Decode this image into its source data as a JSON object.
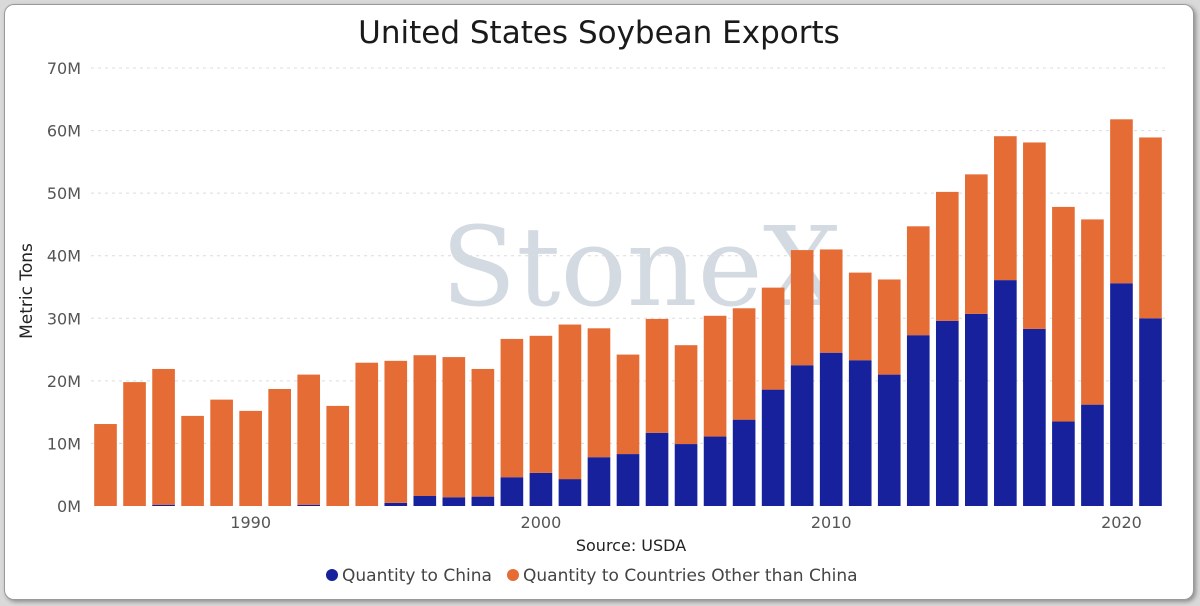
{
  "chart_data": {
    "type": "bar",
    "stacked": true,
    "title": "United States Soybean Exports",
    "ylabel": "Metric Tons",
    "xlabel": "Source: USDA",
    "ylim": [
      0,
      70000000
    ],
    "y_ticks": [
      {
        "value": 0,
        "label": "0M"
      },
      {
        "value": 10000000,
        "label": "10M"
      },
      {
        "value": 20000000,
        "label": "20M"
      },
      {
        "value": 30000000,
        "label": "30M"
      },
      {
        "value": 40000000,
        "label": "40M"
      },
      {
        "value": 50000000,
        "label": "50M"
      },
      {
        "value": 60000000,
        "label": "60M"
      },
      {
        "value": 70000000,
        "label": "70M"
      }
    ],
    "x_ticks": [
      {
        "value": 1990,
        "label": "1990"
      },
      {
        "value": 2000,
        "label": "2000"
      },
      {
        "value": 2010,
        "label": "2010"
      },
      {
        "value": 2020,
        "label": "2020"
      }
    ],
    "grid": true,
    "legend_position": "bottom",
    "watermark": "StoneX",
    "x": [
      1985,
      1986,
      1987,
      1988,
      1989,
      1990,
      1991,
      1992,
      1993,
      1994,
      1995,
      1996,
      1997,
      1998,
      1999,
      2000,
      2001,
      2002,
      2003,
      2004,
      2005,
      2006,
      2007,
      2008,
      2009,
      2010,
      2011,
      2012,
      2013,
      2014,
      2015,
      2016,
      2017,
      2018,
      2019,
      2020,
      2021
    ],
    "series": [
      {
        "name": "Quantity to China",
        "color": "#16219b",
        "values": [
          0,
          0,
          200000,
          0,
          0,
          0,
          0,
          200000,
          0,
          0,
          500000,
          1600000,
          1400000,
          1500000,
          4600000,
          5300000,
          4300000,
          7800000,
          8300000,
          11700000,
          9900000,
          11100000,
          13800000,
          18600000,
          22500000,
          24500000,
          23300000,
          21000000,
          27300000,
          29600000,
          30700000,
          36100000,
          28300000,
          13500000,
          16200000,
          35600000,
          30000000
        ]
      },
      {
        "name": "Quantity to Countries Other than China",
        "color": "#e66c35",
        "values": [
          13100000,
          19800000,
          21700000,
          14400000,
          17000000,
          15200000,
          18700000,
          20800000,
          16000000,
          22900000,
          22700000,
          22500000,
          22400000,
          20400000,
          22100000,
          21900000,
          24700000,
          20600000,
          15900000,
          18200000,
          15800000,
          19300000,
          17800000,
          16300000,
          18400000,
          16500000,
          14000000,
          15200000,
          17400000,
          20600000,
          22300000,
          23000000,
          29800000,
          34300000,
          29600000,
          26200000,
          28900000
        ]
      }
    ]
  }
}
